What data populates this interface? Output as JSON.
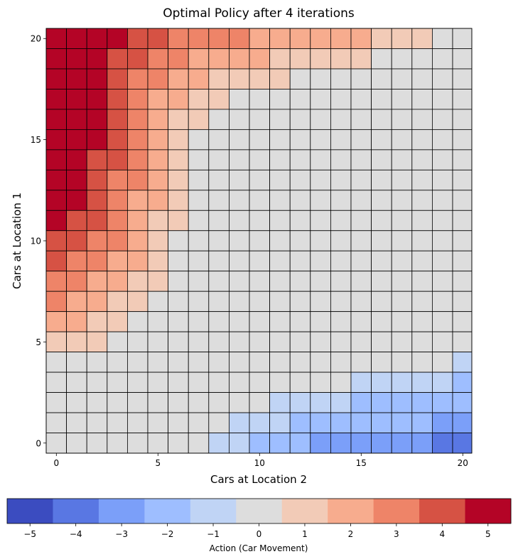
{
  "chart_data": {
    "type": "heatmap",
    "title": "Optimal Policy after 4 iterations",
    "xlabel": "Cars at Location 2",
    "ylabel": "Cars at Location 1",
    "colorbar_label": "Action (Car Movement)",
    "colormap": "coolwarm",
    "x_ticks": [
      0,
      5,
      10,
      15,
      20
    ],
    "y_ticks": [
      0,
      5,
      10,
      15,
      20
    ],
    "colorbar_ticks": [
      "−5",
      "−4",
      "−3",
      "−2",
      "−1",
      "0",
      "1",
      "2",
      "3",
      "4",
      "5"
    ],
    "action_colors": {
      "-5": "#3b4cc0",
      "-4": "#5977e3",
      "-3": "#7b9ff9",
      "-2": "#9ebeff",
      "-1": "#c0d4f5",
      "0": "#dddddd",
      "1": "#f2cbb7",
      "2": "#f7ac8e",
      "3": "#ee8468",
      "4": "#d65244",
      "5": "#b40426"
    },
    "grid_lines": true,
    "policy_rows_top_to_bottom": [
      [
        5,
        5,
        5,
        5,
        4,
        4,
        3,
        3,
        3,
        3,
        2,
        2,
        2,
        2,
        2,
        2,
        1,
        1,
        1,
        0,
        0,
        0
      ],
      [
        5,
        5,
        5,
        4,
        4,
        3,
        3,
        2,
        2,
        2,
        2,
        1,
        1,
        1,
        1,
        1,
        0,
        0,
        0,
        0,
        0,
        0
      ],
      [
        5,
        5,
        5,
        4,
        3,
        3,
        2,
        2,
        1,
        1,
        1,
        1,
        0,
        0,
        0,
        0,
        0,
        0,
        0,
        0,
        0,
        0
      ],
      [
        5,
        5,
        5,
        4,
        3,
        2,
        2,
        1,
        1,
        0,
        0,
        0,
        0,
        0,
        0,
        0,
        0,
        0,
        0,
        0,
        0,
        0
      ],
      [
        5,
        5,
        5,
        4,
        3,
        2,
        1,
        1,
        0,
        0,
        0,
        0,
        0,
        0,
        0,
        0,
        0,
        0,
        0,
        0,
        0,
        0
      ],
      [
        5,
        5,
        5,
        4,
        3,
        2,
        1,
        0,
        0,
        0,
        0,
        0,
        0,
        0,
        0,
        0,
        0,
        0,
        0,
        0,
        0,
        0
      ],
      [
        5,
        5,
        4,
        4,
        3,
        2,
        1,
        0,
        0,
        0,
        0,
        0,
        0,
        0,
        0,
        0,
        0,
        0,
        0,
        0,
        0,
        0
      ],
      [
        5,
        5,
        4,
        3,
        3,
        2,
        1,
        0,
        0,
        0,
        0,
        0,
        0,
        0,
        0,
        0,
        0,
        0,
        0,
        0,
        0,
        0
      ],
      [
        5,
        5,
        4,
        3,
        2,
        2,
        1,
        0,
        0,
        0,
        0,
        0,
        0,
        0,
        0,
        0,
        0,
        0,
        0,
        0,
        0,
        0
      ],
      [
        5,
        4,
        4,
        3,
        2,
        1,
        1,
        0,
        0,
        0,
        0,
        0,
        0,
        0,
        0,
        0,
        0,
        0,
        0,
        0,
        0,
        0
      ],
      [
        4,
        4,
        3,
        3,
        2,
        1,
        0,
        0,
        0,
        0,
        0,
        0,
        0,
        0,
        0,
        0,
        0,
        0,
        0,
        0,
        0,
        0
      ],
      [
        4,
        3,
        3,
        2,
        2,
        1,
        0,
        0,
        0,
        0,
        0,
        0,
        0,
        0,
        0,
        0,
        0,
        0,
        0,
        0,
        0,
        0
      ],
      [
        3,
        3,
        2,
        2,
        1,
        1,
        0,
        0,
        0,
        0,
        0,
        0,
        0,
        0,
        0,
        0,
        0,
        0,
        0,
        0,
        0,
        0
      ],
      [
        3,
        2,
        2,
        1,
        1,
        0,
        0,
        0,
        0,
        0,
        0,
        0,
        0,
        0,
        0,
        0,
        0,
        0,
        0,
        0,
        0,
        0
      ],
      [
        2,
        2,
        1,
        1,
        0,
        0,
        0,
        0,
        0,
        0,
        0,
        0,
        0,
        0,
        0,
        0,
        0,
        0,
        0,
        0,
        0,
        0
      ],
      [
        1,
        1,
        1,
        0,
        0,
        0,
        0,
        0,
        0,
        0,
        0,
        0,
        0,
        0,
        0,
        0,
        0,
        0,
        0,
        0,
        0,
        0
      ],
      [
        0,
        0,
        0,
        0,
        0,
        0,
        0,
        0,
        0,
        0,
        0,
        0,
        0,
        0,
        0,
        0,
        0,
        0,
        0,
        0,
        -1,
        -1
      ],
      [
        0,
        0,
        0,
        0,
        0,
        0,
        0,
        0,
        0,
        0,
        0,
        0,
        0,
        0,
        0,
        -1,
        -1,
        -1,
        -1,
        -1,
        -2,
        -2
      ],
      [
        0,
        0,
        0,
        0,
        0,
        0,
        0,
        0,
        0,
        0,
        0,
        -1,
        -1,
        -1,
        -1,
        -2,
        -2,
        -2,
        -2,
        -2,
        -2,
        -2
      ],
      [
        0,
        0,
        0,
        0,
        0,
        0,
        0,
        0,
        0,
        -1,
        -1,
        -1,
        -2,
        -2,
        -2,
        -2,
        -2,
        -2,
        -2,
        -3,
        -3,
        -3
      ],
      [
        0,
        0,
        0,
        0,
        0,
        0,
        0,
        0,
        -1,
        -1,
        -2,
        -2,
        -2,
        -3,
        -3,
        -3,
        -3,
        -3,
        -3,
        -4,
        -4,
        -4
      ]
    ],
    "note_rows": "21 rows from location-1 = 20 (top) down to 0 (bottom); 22 columns per row, last column clipped at the right edge"
  }
}
